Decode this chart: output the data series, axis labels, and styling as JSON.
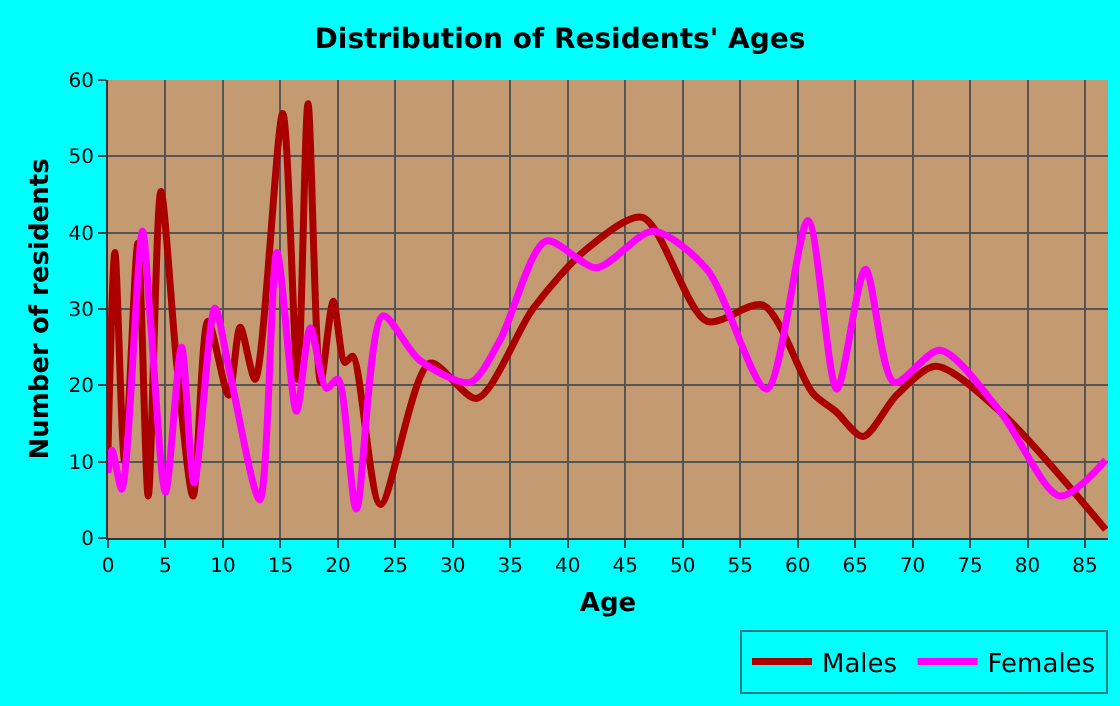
{
  "chart_data": {
    "type": "line",
    "title": "Distribution of Residents' Ages",
    "xlabel": "Age",
    "ylabel": "Number of residents",
    "xlim": [
      0,
      87
    ],
    "xticks": [
      0,
      5,
      10,
      15,
      20,
      25,
      30,
      35,
      40,
      45,
      50,
      55,
      60,
      65,
      70,
      75,
      80,
      85
    ],
    "ylim": [
      0,
      60
    ],
    "yticks": [
      0,
      10,
      20,
      30,
      40,
      50,
      60
    ],
    "grid": true,
    "legend": "bottom right",
    "marker": "none",
    "line_style": "solid",
    "series": [
      {
        "name": "Males",
        "color": "#aa0000",
        "x": [
          0,
          0.6,
          1.45,
          2.6,
          3.5,
          4.6,
          6,
          7.4,
          8.7,
          10.5,
          11.5,
          12.8,
          15.2,
          16.5,
          17.4,
          18.5,
          19.6,
          20.6,
          21.3,
          23.7,
          28,
          32.1,
          37,
          41.6,
          46.5,
          52.1,
          57,
          61.3,
          63.3,
          65.7,
          68.6,
          72,
          77.6,
          86.8
        ],
        "values": [
          11.5,
          37.4,
          10,
          38.6,
          5.5,
          45.4,
          22.5,
          5.5,
          28.4,
          18.7,
          27.6,
          20.8,
          55.6,
          20.8,
          56.9,
          20.4,
          31,
          23,
          23.8,
          4.4,
          22.9,
          18.3,
          30.1,
          37.8,
          42,
          28.4,
          30.5,
          19,
          16.6,
          13.3,
          18.7,
          22.5,
          16.6,
          1.1
        ]
      },
      {
        "name": "Females",
        "color": "#ff00ff",
        "x": [
          0,
          0.35,
          1.2,
          3,
          3.7,
          5,
          6.4,
          7.5,
          9.3,
          10.6,
          13.2,
          14.7,
          16.4,
          17.6,
          19,
          20,
          21.6,
          23.9,
          27.1,
          31.5,
          34.1,
          38.1,
          42.5,
          47.4,
          52.1,
          57.3,
          60.9,
          63.4,
          65.9,
          68.4,
          72.4,
          77.6,
          82.8,
          86.8
        ],
        "values": [
          8.5,
          11.5,
          6.4,
          40.2,
          28.4,
          6,
          25,
          7.2,
          30.1,
          21.6,
          5,
          37.4,
          16.6,
          27.5,
          19.6,
          20.8,
          3.8,
          29.1,
          23.3,
          20.4,
          25.9,
          38.9,
          35.4,
          40.2,
          35.2,
          19.5,
          41.6,
          19.5,
          35.2,
          20.4,
          24.6,
          16.6,
          5.5,
          10.2
        ]
      }
    ]
  }
}
